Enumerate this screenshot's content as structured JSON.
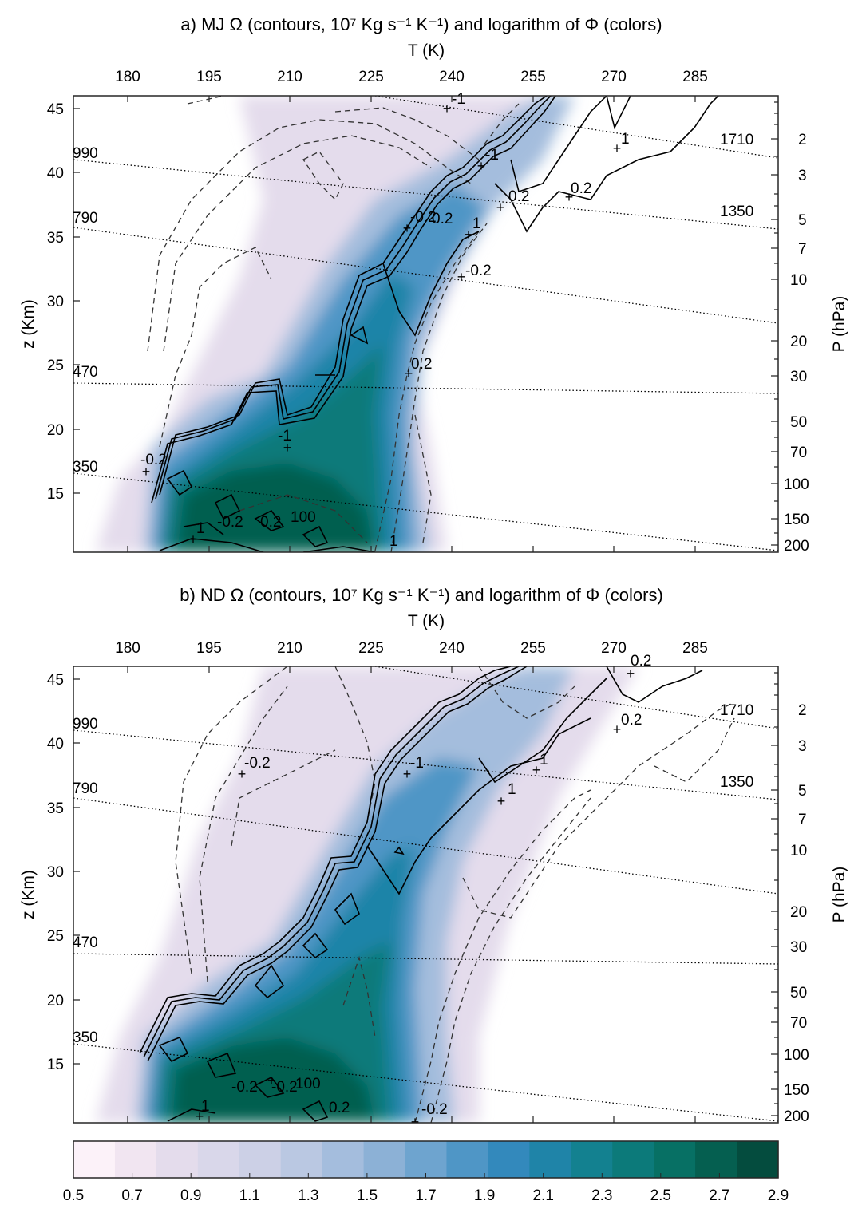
{
  "panels": [
    {
      "id": "a",
      "title": "a) MJ Ω (contours, 10⁷ Kg s⁻¹ K⁻¹) and logarithm of Φ (colors)",
      "top_axis_label": "T (K)",
      "left_axis_label": "z (Km)",
      "right_axis_label": "P (hPa)",
      "T_ticks": [
        "180",
        "195",
        "210",
        "225",
        "240",
        "255",
        "270",
        "285"
      ],
      "z_ticks": [
        "15",
        "20",
        "25",
        "30",
        "35",
        "40",
        "45"
      ],
      "P_ticks": [
        "2",
        "3",
        "5",
        "7",
        "10",
        "20",
        "30",
        "50",
        "70",
        "100",
        "150",
        "200"
      ],
      "isentrope_labels": [
        "350",
        "470",
        "790",
        "990",
        "1350",
        "1710"
      ],
      "contour_labels": [
        "-1",
        "-1",
        "0.2",
        "0.2",
        "-0.2",
        "1",
        "0.2",
        "-0.2",
        "0.2",
        "-0.2",
        "1",
        "-0.2",
        "0.2",
        "100",
        "1",
        "-1",
        "1"
      ]
    },
    {
      "id": "b",
      "title": "b) ND Ω (contours, 10⁷ Kg s⁻¹ K⁻¹) and logarithm of Φ (colors)",
      "top_axis_label": "T (K)",
      "left_axis_label": "z (Km)",
      "right_axis_label": "P (hPa)",
      "T_ticks": [
        "180",
        "195",
        "210",
        "225",
        "240",
        "255",
        "270",
        "285"
      ],
      "z_ticks": [
        "15",
        "20",
        "25",
        "30",
        "35",
        "40",
        "45"
      ],
      "P_ticks": [
        "2",
        "3",
        "5",
        "7",
        "10",
        "20",
        "30",
        "50",
        "70",
        "100",
        "150",
        "200"
      ],
      "isentrope_labels": [
        "350",
        "470",
        "790",
        "990",
        "1350",
        "1710"
      ],
      "contour_labels": [
        "0.2",
        "0.2",
        "-1",
        "1",
        "1",
        "-0.2",
        "-0.2",
        "100",
        "-0.2",
        "0.2",
        "1",
        "-0.2"
      ]
    }
  ],
  "colorbar": {
    "ticks": [
      "0.5",
      "0.7",
      "0.9",
      "1.1",
      "1.3",
      "1.5",
      "1.7",
      "1.9",
      "2.1",
      "2.3",
      "2.5",
      "2.7",
      "2.9"
    ],
    "colors": [
      "#fcf2f9",
      "#f1e5f1",
      "#e4dcec",
      "#d9d7ea",
      "#ccd0e6",
      "#bac8e2",
      "#a4bddd",
      "#8cb1d6",
      "#6ea4cf",
      "#4f96c6",
      "#3389bc",
      "#1f84a8",
      "#138190",
      "#0c7a7a",
      "#077064",
      "#055f50",
      "#044c3e"
    ]
  },
  "chart_data": [
    {
      "type": "contour",
      "title": "a) MJ Ω (contours, 10⁷ Kg s⁻¹ K⁻¹) and logarithm of Φ (colors)",
      "xlabel": "T (K)",
      "ylabel": "z (Km)",
      "y2label": "P (hPa)",
      "xlim": [
        170,
        300
      ],
      "ylim": [
        10.5,
        46
      ],
      "x_ticks": [
        180,
        195,
        210,
        225,
        240,
        255,
        270,
        285
      ],
      "y_ticks": [
        15,
        20,
        25,
        30,
        35,
        40,
        45
      ],
      "y2_ticks": [
        2,
        3,
        5,
        7,
        10,
        20,
        30,
        50,
        70,
        100,
        150,
        200
      ],
      "isentropes_K": [
        350,
        470,
        790,
        990,
        1350,
        1710
      ],
      "color_field": "log10(Φ)",
      "color_range": [
        0.5,
        2.9
      ],
      "contour_levels": [
        -100,
        -1,
        -0.2,
        0.2,
        1,
        100
      ],
      "solid": "positive Ω",
      "dashed": "negative Ω",
      "shaded_ridge": [
        {
          "z": 11,
          "T_left": 195,
          "T_right": 233,
          "max_log": 2.8
        },
        {
          "z": 14,
          "T_left": 190,
          "T_right": 232,
          "max_log": 2.8
        },
        {
          "z": 18,
          "T_left": 195,
          "T_right": 232,
          "max_log": 2.5
        },
        {
          "z": 22,
          "T_left": 203,
          "T_right": 233,
          "max_log": 2.3
        },
        {
          "z": 26,
          "T_left": 210,
          "T_right": 234,
          "max_log": 2.2
        },
        {
          "z": 30,
          "T_left": 215,
          "T_right": 240,
          "max_log": 2.0
        },
        {
          "z": 34,
          "T_left": 225,
          "T_right": 246,
          "max_log": 1.9
        },
        {
          "z": 38,
          "T_left": 235,
          "T_right": 252,
          "max_log": 1.5
        },
        {
          "z": 42,
          "T_left": 245,
          "T_right": 262,
          "max_log": 1.2
        },
        {
          "z": 46,
          "T_left": 256,
          "T_right": 272,
          "max_log": 1.0
        }
      ]
    },
    {
      "type": "contour",
      "title": "b) ND Ω (contours, 10⁷ Kg s⁻¹ K⁻¹) and logarithm of Φ (colors)",
      "xlabel": "T (K)",
      "ylabel": "z (Km)",
      "y2label": "P (hPa)",
      "xlim": [
        170,
        300
      ],
      "ylim": [
        10.5,
        46
      ],
      "x_ticks": [
        180,
        195,
        210,
        225,
        240,
        255,
        270,
        285
      ],
      "y_ticks": [
        15,
        20,
        25,
        30,
        35,
        40,
        45
      ],
      "y2_ticks": [
        2,
        3,
        5,
        7,
        10,
        20,
        30,
        50,
        70,
        100,
        150,
        200
      ],
      "isentropes_K": [
        350,
        470,
        790,
        990,
        1350,
        1710
      ],
      "color_field": "log10(Φ)",
      "color_range": [
        0.5,
        2.9
      ],
      "contour_levels": [
        -100,
        -1,
        -0.2,
        0.2,
        1,
        100
      ],
      "solid": "positive Ω",
      "dashed": "negative Ω",
      "shaded_ridge": [
        {
          "z": 11,
          "T_left": 195,
          "T_right": 235,
          "max_log": 2.8
        },
        {
          "z": 14,
          "T_left": 185,
          "T_right": 236,
          "max_log": 2.8
        },
        {
          "z": 18,
          "T_left": 190,
          "T_right": 238,
          "max_log": 2.5
        },
        {
          "z": 22,
          "T_left": 200,
          "T_right": 240,
          "max_log": 2.2
        },
        {
          "z": 26,
          "T_left": 208,
          "T_right": 243,
          "max_log": 2.0
        },
        {
          "z": 30,
          "T_left": 218,
          "T_right": 248,
          "max_log": 1.9
        },
        {
          "z": 34,
          "T_left": 228,
          "T_right": 254,
          "max_log": 1.7
        },
        {
          "z": 38,
          "T_left": 238,
          "T_right": 260,
          "max_log": 1.4
        },
        {
          "z": 42,
          "T_left": 248,
          "T_right": 266,
          "max_log": 1.1
        },
        {
          "z": 46,
          "T_left": 258,
          "T_right": 274,
          "max_log": 1.0
        }
      ]
    }
  ]
}
